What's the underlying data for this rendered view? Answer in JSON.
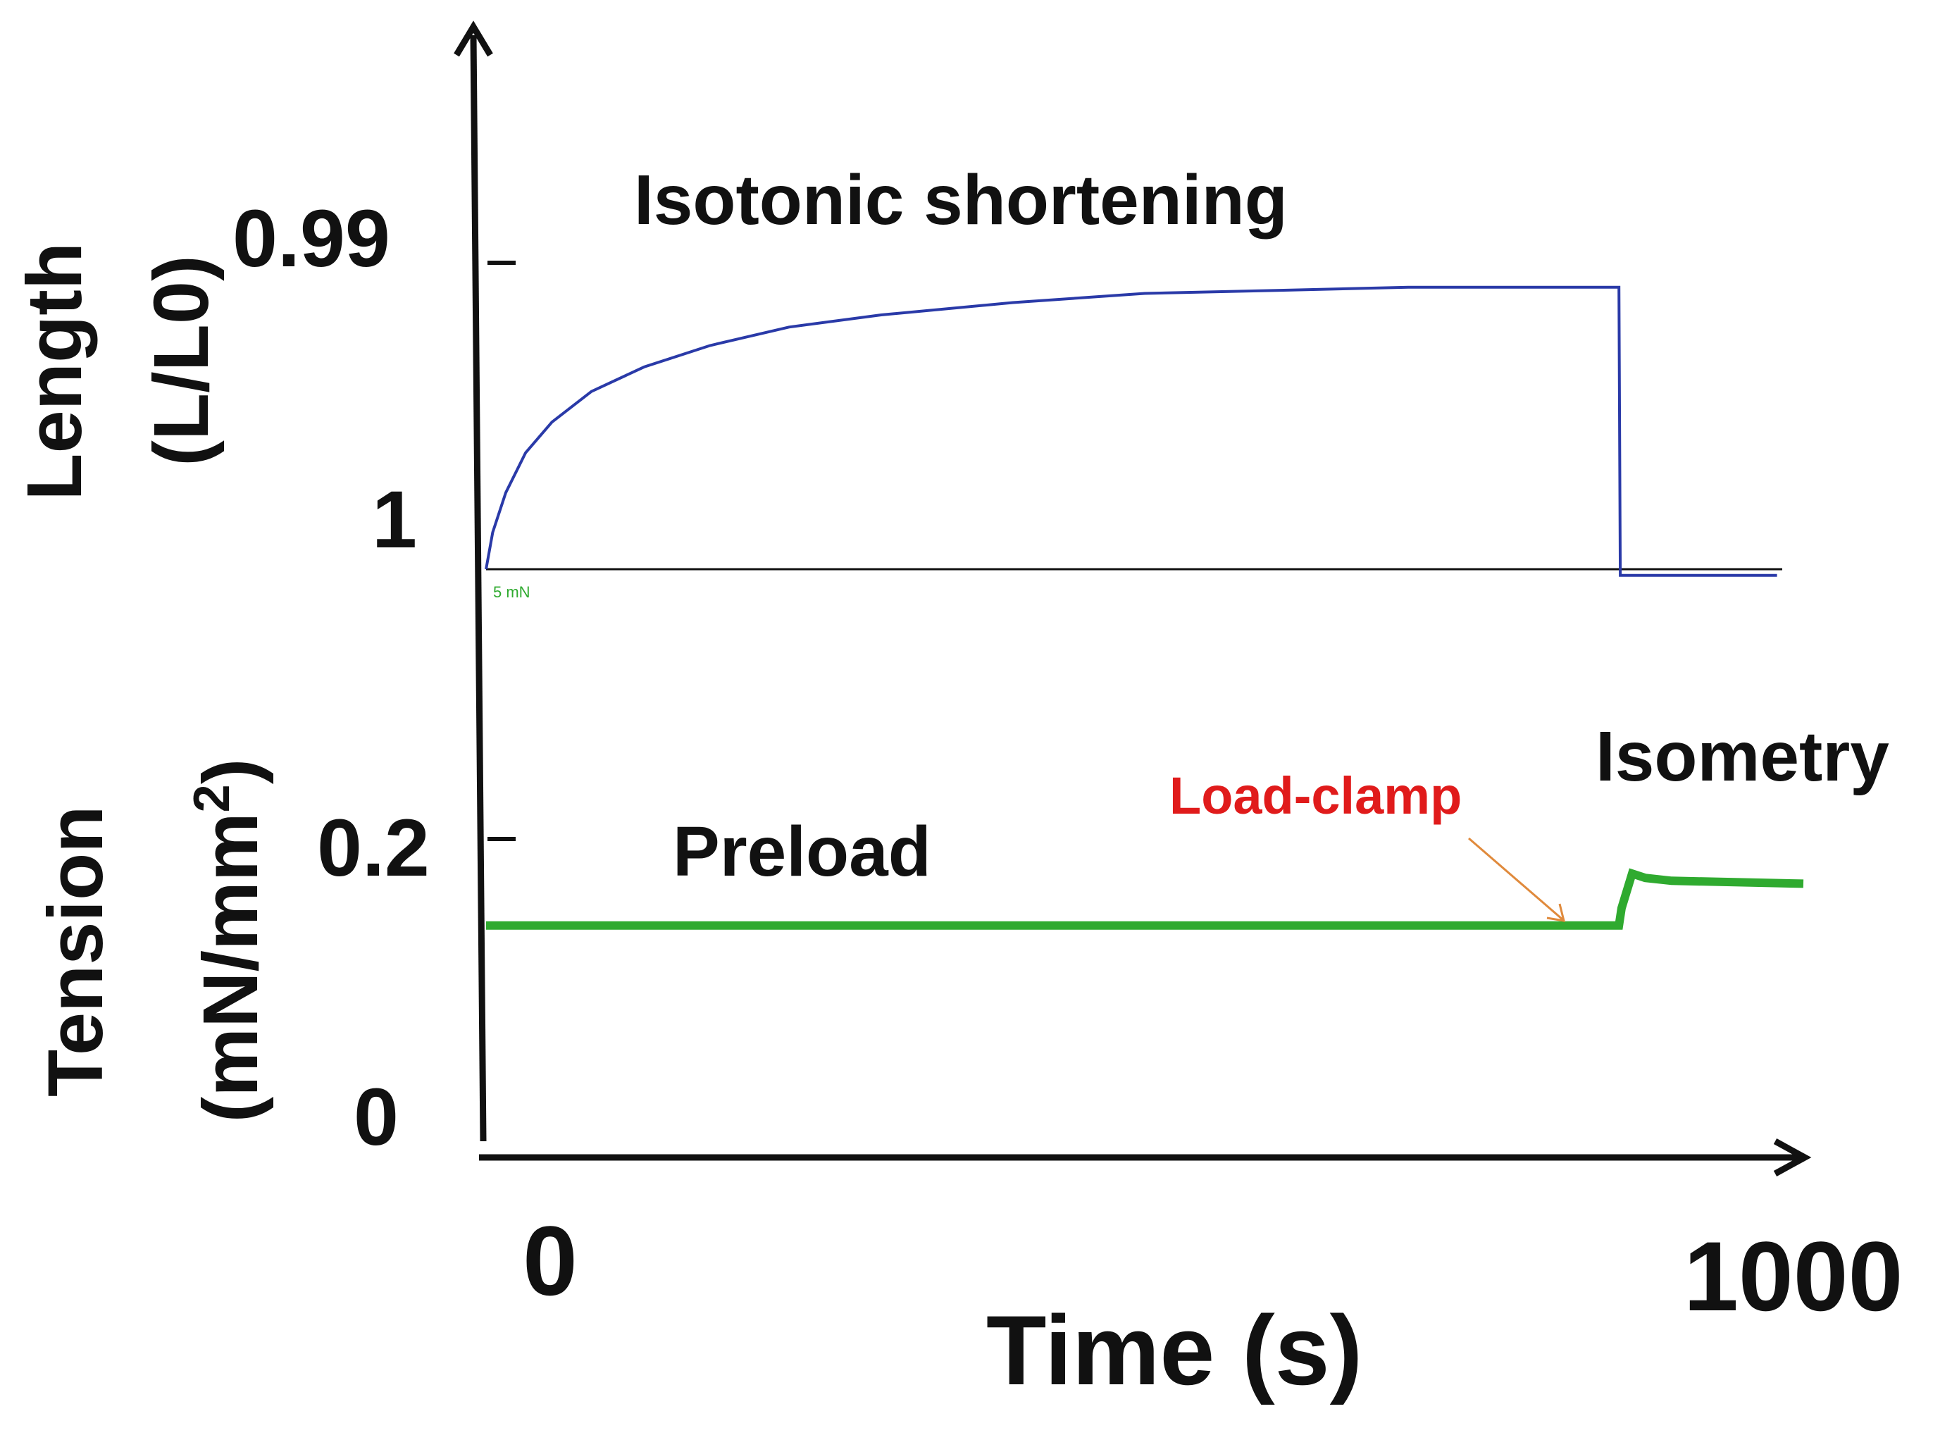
{
  "chart_data": {
    "type": "line",
    "title": "",
    "xlabel": "Time (s)",
    "x_ticks": [
      "0",
      "1000"
    ],
    "xlim": [
      0,
      1000
    ],
    "grid": false,
    "legend": "none",
    "length_axis": {
      "label_line1": "Length",
      "label_line2": "(L/L0)",
      "ticks": [
        "0.99",
        "1"
      ],
      "tick_values": [
        0.99,
        1.0
      ]
    },
    "tension_axis": {
      "label_line1": "Tension",
      "label_line2_prefix": "(mN/mm",
      "label_line2_sup": "2",
      "label_line2_suffix": ")",
      "ticks": [
        "0.2",
        "0"
      ],
      "tick_values": [
        0.2,
        0
      ],
      "scale_note": "5 mN"
    },
    "series": [
      {
        "color": "#2a3aa8",
        "axis": "length",
        "x": [
          0,
          5,
          15,
          30,
          50,
          80,
          120,
          170,
          230,
          300,
          400,
          500,
          600,
          700,
          800,
          860,
          861,
          900,
          980
        ],
        "y": [
          1.0,
          0.9988,
          0.9975,
          0.9962,
          0.9952,
          0.9942,
          0.9934,
          0.9927,
          0.9921,
          0.9917,
          0.9913,
          0.991,
          0.9909,
          0.9908,
          0.9908,
          0.9908,
          1.0002,
          1.0002,
          1.0002
        ]
      },
      {
        "color": "#2faa2f",
        "axis": "tension",
        "x": [
          0,
          860,
          862,
          870,
          880,
          900,
          1000
        ],
        "y": [
          0.14,
          0.14,
          0.152,
          0.176,
          0.173,
          0.171,
          0.169
        ]
      }
    ],
    "annotations": {
      "isotonic": "Isotonic shortening",
      "preload": "Preload",
      "load_clamp": "Load-clamp",
      "isometry": "Isometry"
    },
    "colors": {
      "length": "#2a3aa8",
      "tension": "#2faa2f",
      "load_clamp": "#e01b1b",
      "arrow": "#e08a3c",
      "axis": "#111111"
    }
  }
}
